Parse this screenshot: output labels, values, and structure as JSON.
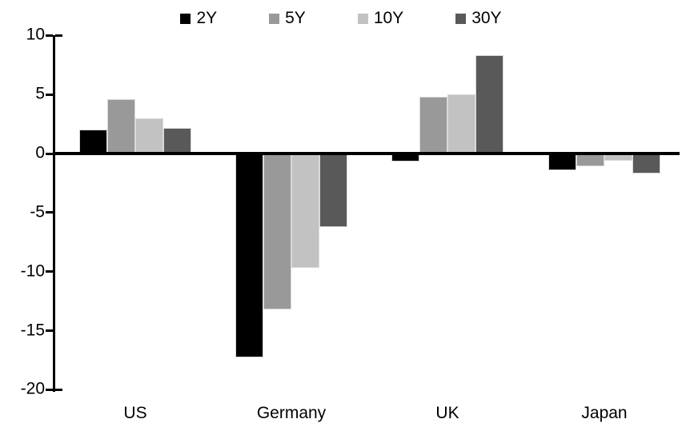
{
  "chart_data": {
    "type": "bar",
    "title": "",
    "xlabel": "",
    "ylabel": "",
    "categories": [
      "US",
      "Germany",
      "UK",
      "Japan"
    ],
    "series": [
      {
        "name": "2Y",
        "color": "#000000",
        "values": [
          2.0,
          -17.3,
          -0.7,
          -1.4
        ]
      },
      {
        "name": "5Y",
        "color": "#999999",
        "values": [
          4.6,
          -13.2,
          4.8,
          -1.1
        ]
      },
      {
        "name": "10Y",
        "color": "#c2c2c2",
        "values": [
          3.0,
          -9.7,
          5.0,
          -0.6
        ]
      },
      {
        "name": "30Y",
        "color": "#595959",
        "values": [
          2.2,
          -6.2,
          8.3,
          -1.7
        ]
      }
    ],
    "ylim": [
      -20,
      10
    ],
    "yticks": [
      10,
      5,
      0,
      -5,
      -10,
      -15,
      -20
    ],
    "legend_position": "top-center",
    "grid": false,
    "colors": {
      "axis": "#000000",
      "bar_outline": "#d9d9d9",
      "background": "#ffffff"
    }
  }
}
